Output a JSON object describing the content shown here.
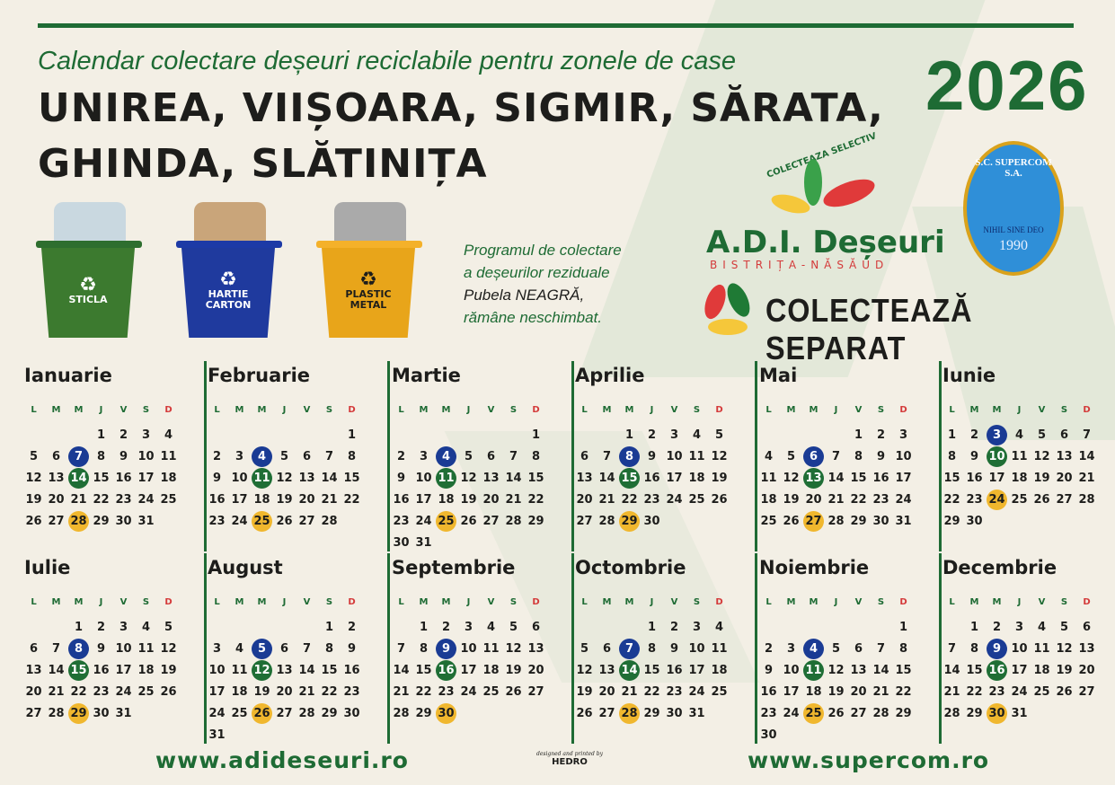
{
  "header": {
    "subtitle": "Calendar colectare deșeuri reciclabile pentru zonele de case",
    "title": "UNIREA, VIIȘOARA, SIGMIR, SĂRATA, GHINDA, SLĂTINIȚA",
    "year": "2026"
  },
  "bins": [
    {
      "label": "STICLA",
      "color": "#2e6e2f",
      "icon": "recycle-icon"
    },
    {
      "label": "HARTIE CARTON",
      "color": "#1d3aa6",
      "icon": "recycle-icon"
    },
    {
      "label": "PLASTIC METAL",
      "color": "#f0ac1b",
      "icon": "recycle-icon"
    }
  ],
  "note": {
    "line1": "Programul de colectare",
    "line2": "a deșeurilor reziduale",
    "line3": "Pubela NEAGRĂ,",
    "line4": "rămâne neschimbat."
  },
  "logos": {
    "adi_arc": "COLECTEAZA SELECTIV",
    "adi_name": "A.D.I. Deșeuri",
    "adi_region": "BISTRIȚA-NĂSĂUD",
    "separat": "COLECTEAZĂ SEPARAT",
    "supercom_name": "S.C. SUPERCOM S.A.",
    "supercom_motto": "NIHIL SINE DEO",
    "supercom_year": "1990"
  },
  "colors": {
    "blue": "#1a3b94",
    "green": "#1f6e35",
    "yellow": "#f0b72e",
    "accent": "#1e6b34"
  },
  "weekdays": [
    "L",
    "M",
    "M",
    "J",
    "V",
    "S",
    "D"
  ],
  "months": [
    {
      "name": "Ianuarie",
      "days": 31,
      "blue": 7,
      "green": 14,
      "yellow": 28
    },
    {
      "name": "Februarie",
      "days": 28,
      "blue": 4,
      "green": 11,
      "yellow": 25
    },
    {
      "name": "Martie",
      "days": 31,
      "blue": 4,
      "green": 11,
      "yellow": 25
    },
    {
      "name": "Aprilie",
      "days": 30,
      "blue": 8,
      "green": 15,
      "yellow": 29
    },
    {
      "name": "Mai",
      "days": 31,
      "blue": 6,
      "green": 13,
      "yellow": 27
    },
    {
      "name": "Iunie",
      "days": 30,
      "blue": 3,
      "green": 10,
      "yellow": 24
    },
    {
      "name": "Iulie",
      "days": 31,
      "blue": 8,
      "green": 15,
      "yellow": 29
    },
    {
      "name": "August",
      "days": 31,
      "blue": 5,
      "green": 12,
      "yellow": 26
    },
    {
      "name": "Septembrie",
      "days": 30,
      "blue": 9,
      "green": 16,
      "yellow": 30
    },
    {
      "name": "Octombrie",
      "days": 31,
      "blue": 7,
      "green": 14,
      "yellow": 28
    },
    {
      "name": "Noiembrie",
      "days": 30,
      "blue": 4,
      "green": 11,
      "yellow": 25
    },
    {
      "name": "Decembrie",
      "days": 31,
      "blue": 9,
      "green": 16,
      "yellow": 30
    }
  ],
  "footer": {
    "left_url": "www.adideseuri.ro",
    "credit_small": "designed and printed by",
    "credit": "HEDRO",
    "right_url": "www.supercom.ro"
  }
}
